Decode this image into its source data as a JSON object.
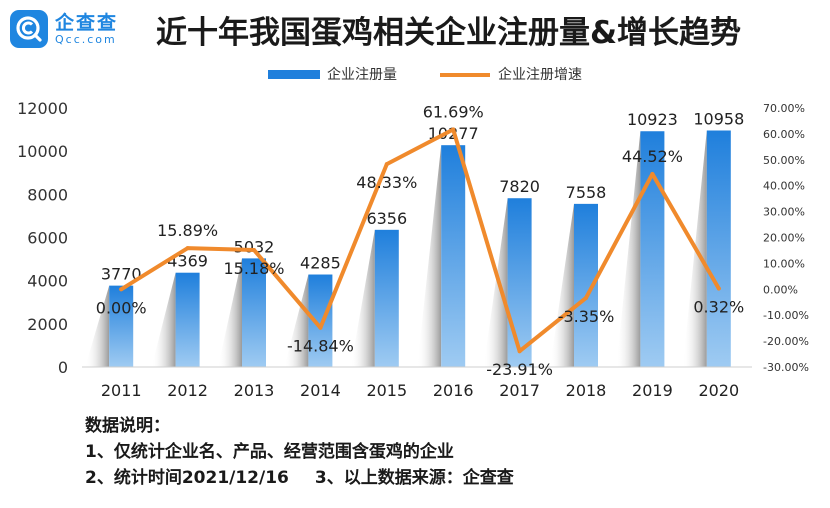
{
  "logo": {
    "name": "企查查",
    "domain": "Qcc.com",
    "icon": "qcc-logo-icon"
  },
  "title": "近十年我国蛋鸡相关企业注册量&增长趋势",
  "colors": {
    "bar_top": "#1f7fdc",
    "bar_bottom": "#9fcbf2",
    "line": "#f08a2c",
    "logo": "#1f86e0"
  },
  "chart_data": {
    "type": "bar+line",
    "categories": [
      "2011",
      "2012",
      "2013",
      "2014",
      "2015",
      "2016",
      "2017",
      "2018",
      "2019",
      "2020"
    ],
    "series": [
      {
        "name": "企业注册量",
        "type": "bar",
        "axis": "left",
        "values": [
          3770,
          4369,
          5032,
          4285,
          6356,
          10277,
          7820,
          7558,
          10923,
          10958
        ],
        "labels": [
          "3770",
          "4369",
          "5032",
          "4285",
          "6356",
          "10277",
          "7820",
          "7558",
          "10923",
          "10958"
        ]
      },
      {
        "name": "企业注册增速",
        "type": "line",
        "axis": "right",
        "unit": "%",
        "values": [
          0.0,
          15.89,
          15.18,
          -14.84,
          48.33,
          61.69,
          -23.91,
          -3.35,
          44.52,
          0.32
        ],
        "labels": [
          "0.00%",
          "15.89%",
          "15.18%",
          "-14.84%",
          "48.33%",
          "61.69%",
          "-23.91%",
          "-3.35%",
          "44.52%",
          "0.32%"
        ]
      }
    ],
    "y_left": {
      "min": 0,
      "max": 12000,
      "ticks": [
        "0",
        "2000",
        "4000",
        "6000",
        "8000",
        "10000",
        "12000"
      ]
    },
    "y_right": {
      "min": -30,
      "max": 70,
      "ticks": [
        "-30.00%",
        "-20.00%",
        "-10.00%",
        "0.00%",
        "10.00%",
        "20.00%",
        "30.00%",
        "40.00%",
        "50.00%",
        "60.00%",
        "70.00%"
      ]
    },
    "legend_position": "top-center",
    "grid": false
  },
  "notes": {
    "heading": "数据说明：",
    "line1": "1、仅统计企业名、产品、经营范围含蛋鸡的企业",
    "line2a": "2、统计时间2021/12/16",
    "line2b": "3、以上数据来源：企查查"
  }
}
